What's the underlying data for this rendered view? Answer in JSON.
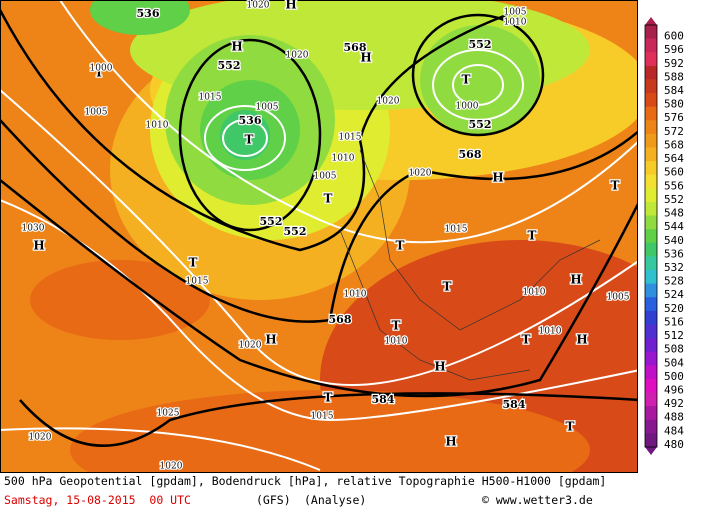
{
  "scale": {
    "labels": [
      "600",
      "596",
      "592",
      "588",
      "584",
      "580",
      "576",
      "572",
      "568",
      "564",
      "560",
      "556",
      "552",
      "548",
      "544",
      "540",
      "536",
      "532",
      "528",
      "524",
      "520",
      "516",
      "512",
      "508",
      "504",
      "500",
      "496",
      "492",
      "488",
      "484",
      "480"
    ],
    "colors": [
      "#a8204c",
      "#c8285a",
      "#e0305a",
      "#b82828",
      "#c83a1e",
      "#d84a18",
      "#e86a14",
      "#ee8418",
      "#f09a1c",
      "#f4b020",
      "#f8cc28",
      "#f4e030",
      "#e0ec30",
      "#c0e838",
      "#90dc40",
      "#60d048",
      "#40c868",
      "#38c8a0",
      "#30c0d0",
      "#3090e0",
      "#2860e0",
      "#3040d0",
      "#5030d0",
      "#7020d0",
      "#9818d0",
      "#c010c8",
      "#e010c0",
      "#d020b0",
      "#a818a0",
      "#881890",
      "#701880"
    ]
  },
  "map": {
    "labels": [
      "536",
      "552",
      "536",
      "552",
      "552",
      "568",
      "552",
      "552",
      "568",
      "568",
      "584",
      "584",
      "H",
      "T",
      "T",
      "H",
      "T",
      "H",
      "T",
      "T",
      "T",
      "T",
      "T",
      "H",
      "H",
      "T",
      "H",
      "T",
      "H",
      "T",
      "T",
      "H",
      "T",
      "H",
      "H",
      "1030",
      "1020",
      "1025",
      "1020",
      "1020",
      "1015",
      "1010",
      "1005",
      "1000",
      "1015",
      "1005",
      "1020",
      "1015",
      "1010",
      "1005",
      "1020",
      "1020",
      "1015",
      "1010",
      "1010",
      "1010",
      "1010",
      "1005",
      "1015",
      "1010",
      "1005",
      "1000",
      "1020"
    ]
  },
  "footer": {
    "line1": "500 hPa Geopotential [gpdam], Bodendruck [hPa], relative Topographie H500-H1000 [gpdam]",
    "date": "Samstag, 15-08-2015  00 UTC",
    "model": "(GFS)",
    "analysis": "(Analyse)",
    "credit": "© www.wetter3.de"
  }
}
